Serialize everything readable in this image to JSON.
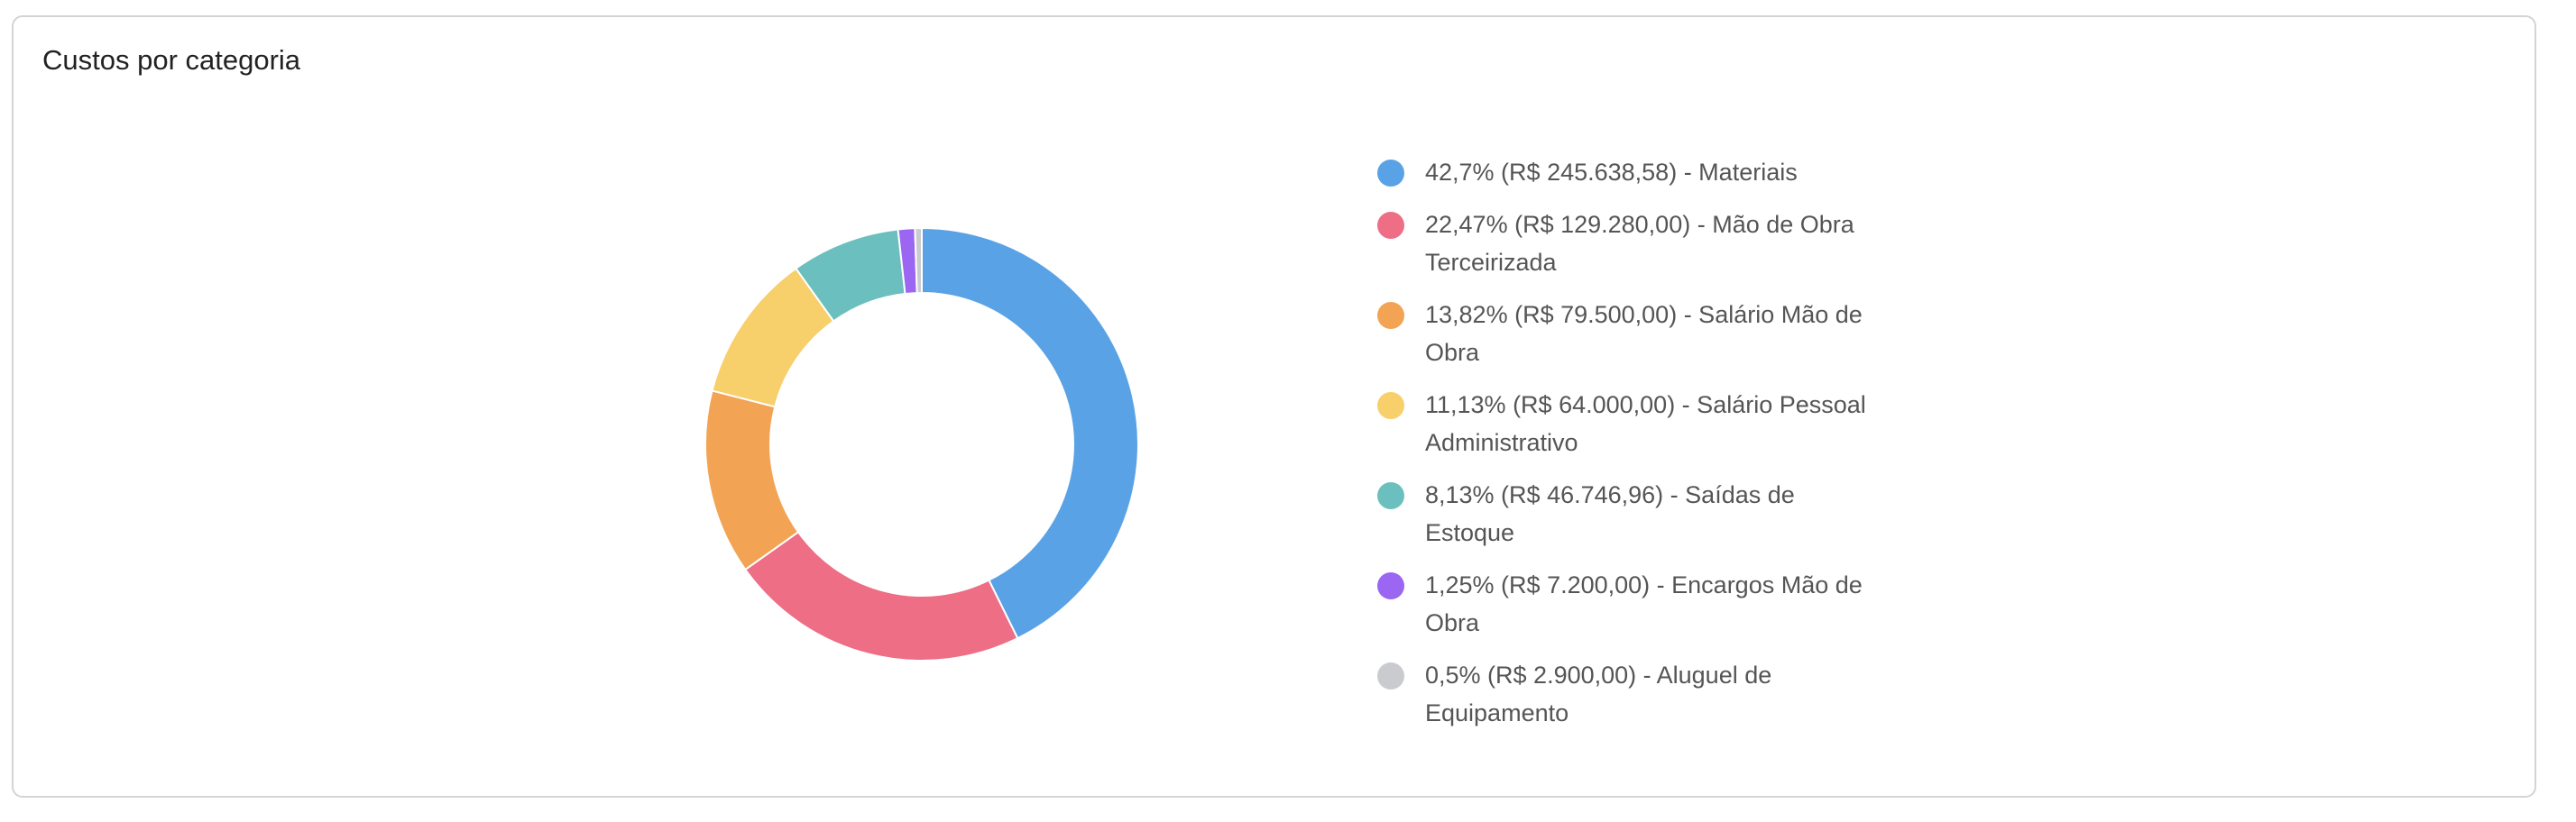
{
  "card": {
    "title": "Custos por categoria"
  },
  "chart_data": {
    "type": "pie",
    "variant": "donut",
    "title": "",
    "legend_position": "right",
    "slices": [
      {
        "label": "42,7% (R$ 245.638,58) - Materiais",
        "category": "Materiais",
        "percent": 42.7,
        "value": 245638.58,
        "color": "#5aa2e6"
      },
      {
        "label": "22,47% (R$ 129.280,00) - Mão de Obra Terceirizada",
        "category": "Mão de Obra Terceirizada",
        "percent": 22.47,
        "value": 129280.0,
        "color": "#ee6e85"
      },
      {
        "label": "13,82% (R$ 79.500,00) - Salário Mão de Obra",
        "category": "Salário Mão de Obra",
        "percent": 13.82,
        "value": 79500.0,
        "color": "#f2a454"
      },
      {
        "label": "11,13% (R$ 64.000,00) - Salário Pessoal Administrativo",
        "category": "Salário Pessoal Administrativo",
        "percent": 11.13,
        "value": 64000.0,
        "color": "#f7cf6b"
      },
      {
        "label": "8,13% (R$ 46.746,96) - Saídas de Estoque",
        "category": "Saídas de Estoque",
        "percent": 8.13,
        "value": 46746.96,
        "color": "#6cbfbf"
      },
      {
        "label": "1,25% (R$ 7.200,00) - Encargos Mão de Obra",
        "category": "Encargos Mão de Obra",
        "percent": 1.25,
        "value": 7200.0,
        "color": "#9a66f2"
      },
      {
        "label": "0,5% (R$ 2.900,00) - Aluguel de Equipamento",
        "category": "Aluguel de Equipamento",
        "percent": 0.5,
        "value": 2900.0,
        "color": "#c9cbcf"
      }
    ]
  }
}
